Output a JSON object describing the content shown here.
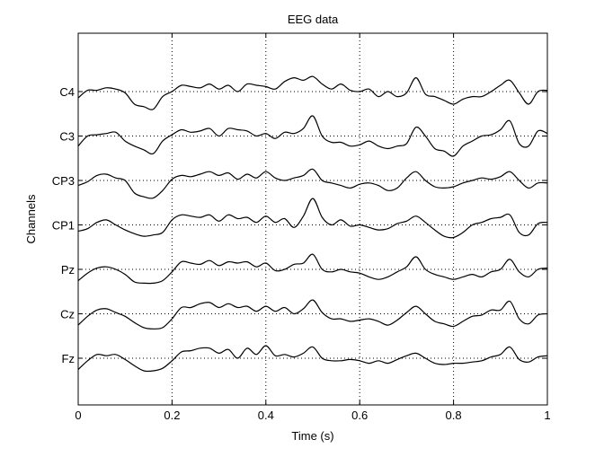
{
  "chart_data": {
    "type": "line",
    "title": "EEG data",
    "xlabel": "Time (s)",
    "ylabel": "Channels",
    "xlim": [
      0,
      1
    ],
    "xticks": [
      0,
      0.2,
      0.4,
      0.6,
      0.8,
      1
    ],
    "xtick_labels": [
      "0",
      "0.2",
      "0.4",
      "0.6",
      "0.8",
      "1"
    ],
    "grid": true,
    "line_color": "#000000",
    "channels": [
      "C4",
      "C3",
      "CP3",
      "CP1",
      "Pz",
      "Cz",
      "Fz"
    ],
    "x": [
      0,
      0.02,
      0.04,
      0.06,
      0.08,
      0.1,
      0.12,
      0.14,
      0.16,
      0.18,
      0.2,
      0.22,
      0.24,
      0.26,
      0.28,
      0.3,
      0.32,
      0.34,
      0.36,
      0.38,
      0.4,
      0.42,
      0.44,
      0.46,
      0.48,
      0.5,
      0.52,
      0.54,
      0.56,
      0.58,
      0.6,
      0.62,
      0.64,
      0.66,
      0.68,
      0.7,
      0.72,
      0.74,
      0.76,
      0.78,
      0.8,
      0.82,
      0.84,
      0.86,
      0.88,
      0.9,
      0.92,
      0.94,
      0.96,
      0.98,
      1
    ],
    "series": [
      {
        "name": "C4",
        "values": [
          -0.25,
          0.05,
          0.05,
          0.15,
          0.1,
          -0.05,
          -0.5,
          -0.6,
          -0.7,
          -0.2,
          0.0,
          0.25,
          0.2,
          0.15,
          0.3,
          0.1,
          0.25,
          0.0,
          0.3,
          0.25,
          0.2,
          0.1,
          0.4,
          0.55,
          0.45,
          0.6,
          0.3,
          0.1,
          0.3,
          0.05,
          0.0,
          0.1,
          -0.2,
          0.0,
          -0.2,
          -0.05,
          0.55,
          -0.1,
          -0.2,
          -0.35,
          -0.5,
          -0.3,
          -0.2,
          -0.2,
          0.0,
          0.25,
          0.45,
          -0.05,
          -0.5,
          0.0,
          0.05
        ]
      },
      {
        "name": "C3",
        "values": [
          -0.4,
          0.0,
          0.05,
          0.1,
          0.15,
          -0.2,
          -0.4,
          -0.55,
          -0.7,
          -0.2,
          0.05,
          0.25,
          0.15,
          0.2,
          0.3,
          0.0,
          0.3,
          0.25,
          0.2,
          0.0,
          0.1,
          -0.1,
          0.15,
          0.1,
          0.3,
          0.8,
          0.0,
          -0.25,
          -0.25,
          -0.4,
          -0.35,
          -0.2,
          -0.4,
          -0.5,
          -0.4,
          -0.3,
          0.35,
          0.0,
          -0.5,
          -0.6,
          -0.8,
          -0.4,
          -0.2,
          0.0,
          0.05,
          0.25,
          0.6,
          -0.3,
          -0.4,
          0.2,
          0.1
        ]
      },
      {
        "name": "CP3",
        "values": [
          -0.2,
          -0.05,
          0.2,
          0.25,
          0.1,
          0.0,
          -0.5,
          -0.65,
          -0.7,
          -0.4,
          0.05,
          0.2,
          0.15,
          0.25,
          0.35,
          0.2,
          0.3,
          0.05,
          0.25,
          0.1,
          0.35,
          0.1,
          0.0,
          0.1,
          0.2,
          0.45,
          0.0,
          -0.1,
          -0.2,
          -0.3,
          -0.15,
          -0.1,
          -0.2,
          -0.4,
          -0.3,
          0.1,
          0.35,
          0.0,
          -0.25,
          -0.3,
          -0.25,
          -0.1,
          0.0,
          0.1,
          0.05,
          0.15,
          0.35,
          0.0,
          -0.3,
          -0.1,
          -0.1
        ]
      },
      {
        "name": "CP1",
        "values": [
          -0.25,
          -0.15,
          0.1,
          0.2,
          0.0,
          -0.2,
          -0.35,
          -0.45,
          -0.4,
          -0.3,
          0.2,
          0.4,
          0.35,
          0.3,
          0.4,
          0.15,
          0.4,
          0.25,
          0.3,
          0.1,
          0.35,
          0.1,
          0.25,
          -0.1,
          0.35,
          1.05,
          0.3,
          0.0,
          0.2,
          -0.05,
          0.0,
          -0.1,
          -0.2,
          -0.15,
          0.05,
          0.15,
          0.35,
          0.1,
          -0.2,
          -0.45,
          -0.5,
          -0.3,
          0.0,
          0.1,
          0.25,
          0.3,
          0.4,
          -0.3,
          -0.4,
          0.05,
          0.1
        ]
      },
      {
        "name": "Pz",
        "values": [
          -0.45,
          -0.15,
          0.05,
          0.1,
          0.0,
          -0.2,
          -0.5,
          -0.55,
          -0.55,
          -0.45,
          -0.1,
          0.3,
          0.25,
          0.2,
          0.35,
          0.15,
          0.3,
          0.25,
          0.3,
          0.1,
          0.25,
          -0.05,
          0.0,
          0.2,
          0.25,
          0.6,
          0.0,
          -0.1,
          0.0,
          -0.1,
          -0.15,
          -0.3,
          -0.4,
          -0.3,
          -0.1,
          0.1,
          0.5,
          0.0,
          -0.2,
          -0.3,
          -0.4,
          -0.3,
          -0.2,
          -0.3,
          -0.1,
          0.0,
          0.4,
          -0.1,
          -0.3,
          0.0,
          0.05
        ]
      },
      {
        "name": "Cz",
        "values": [
          -0.45,
          -0.1,
          0.15,
          0.2,
          0.05,
          -0.1,
          -0.35,
          -0.55,
          -0.6,
          -0.55,
          -0.2,
          0.25,
          0.25,
          0.4,
          0.45,
          0.25,
          0.4,
          0.25,
          0.3,
          0.1,
          0.3,
          0.1,
          0.25,
          0.0,
          0.2,
          0.55,
          0.05,
          -0.2,
          -0.2,
          -0.3,
          -0.25,
          -0.2,
          -0.3,
          -0.45,
          -0.25,
          0.05,
          0.3,
          0.0,
          -0.3,
          -0.4,
          -0.5,
          -0.3,
          -0.1,
          -0.05,
          0.15,
          0.15,
          0.5,
          -0.2,
          -0.4,
          -0.05,
          0.0
        ]
      },
      {
        "name": "Fz",
        "values": [
          -0.45,
          -0.1,
          0.15,
          0.1,
          0.15,
          -0.05,
          -0.3,
          -0.5,
          -0.5,
          -0.4,
          -0.1,
          0.25,
          0.3,
          0.4,
          0.4,
          0.2,
          0.35,
          0.0,
          0.4,
          0.15,
          0.5,
          0.1,
          0.15,
          0.05,
          0.2,
          0.45,
          0.0,
          -0.1,
          -0.1,
          -0.05,
          -0.1,
          -0.2,
          -0.1,
          -0.2,
          -0.05,
          0.1,
          0.2,
          0.0,
          -0.2,
          -0.25,
          -0.2,
          -0.2,
          -0.15,
          -0.1,
          0.05,
          0.15,
          0.45,
          -0.05,
          -0.15,
          0.05,
          0.1
        ]
      }
    ]
  }
}
